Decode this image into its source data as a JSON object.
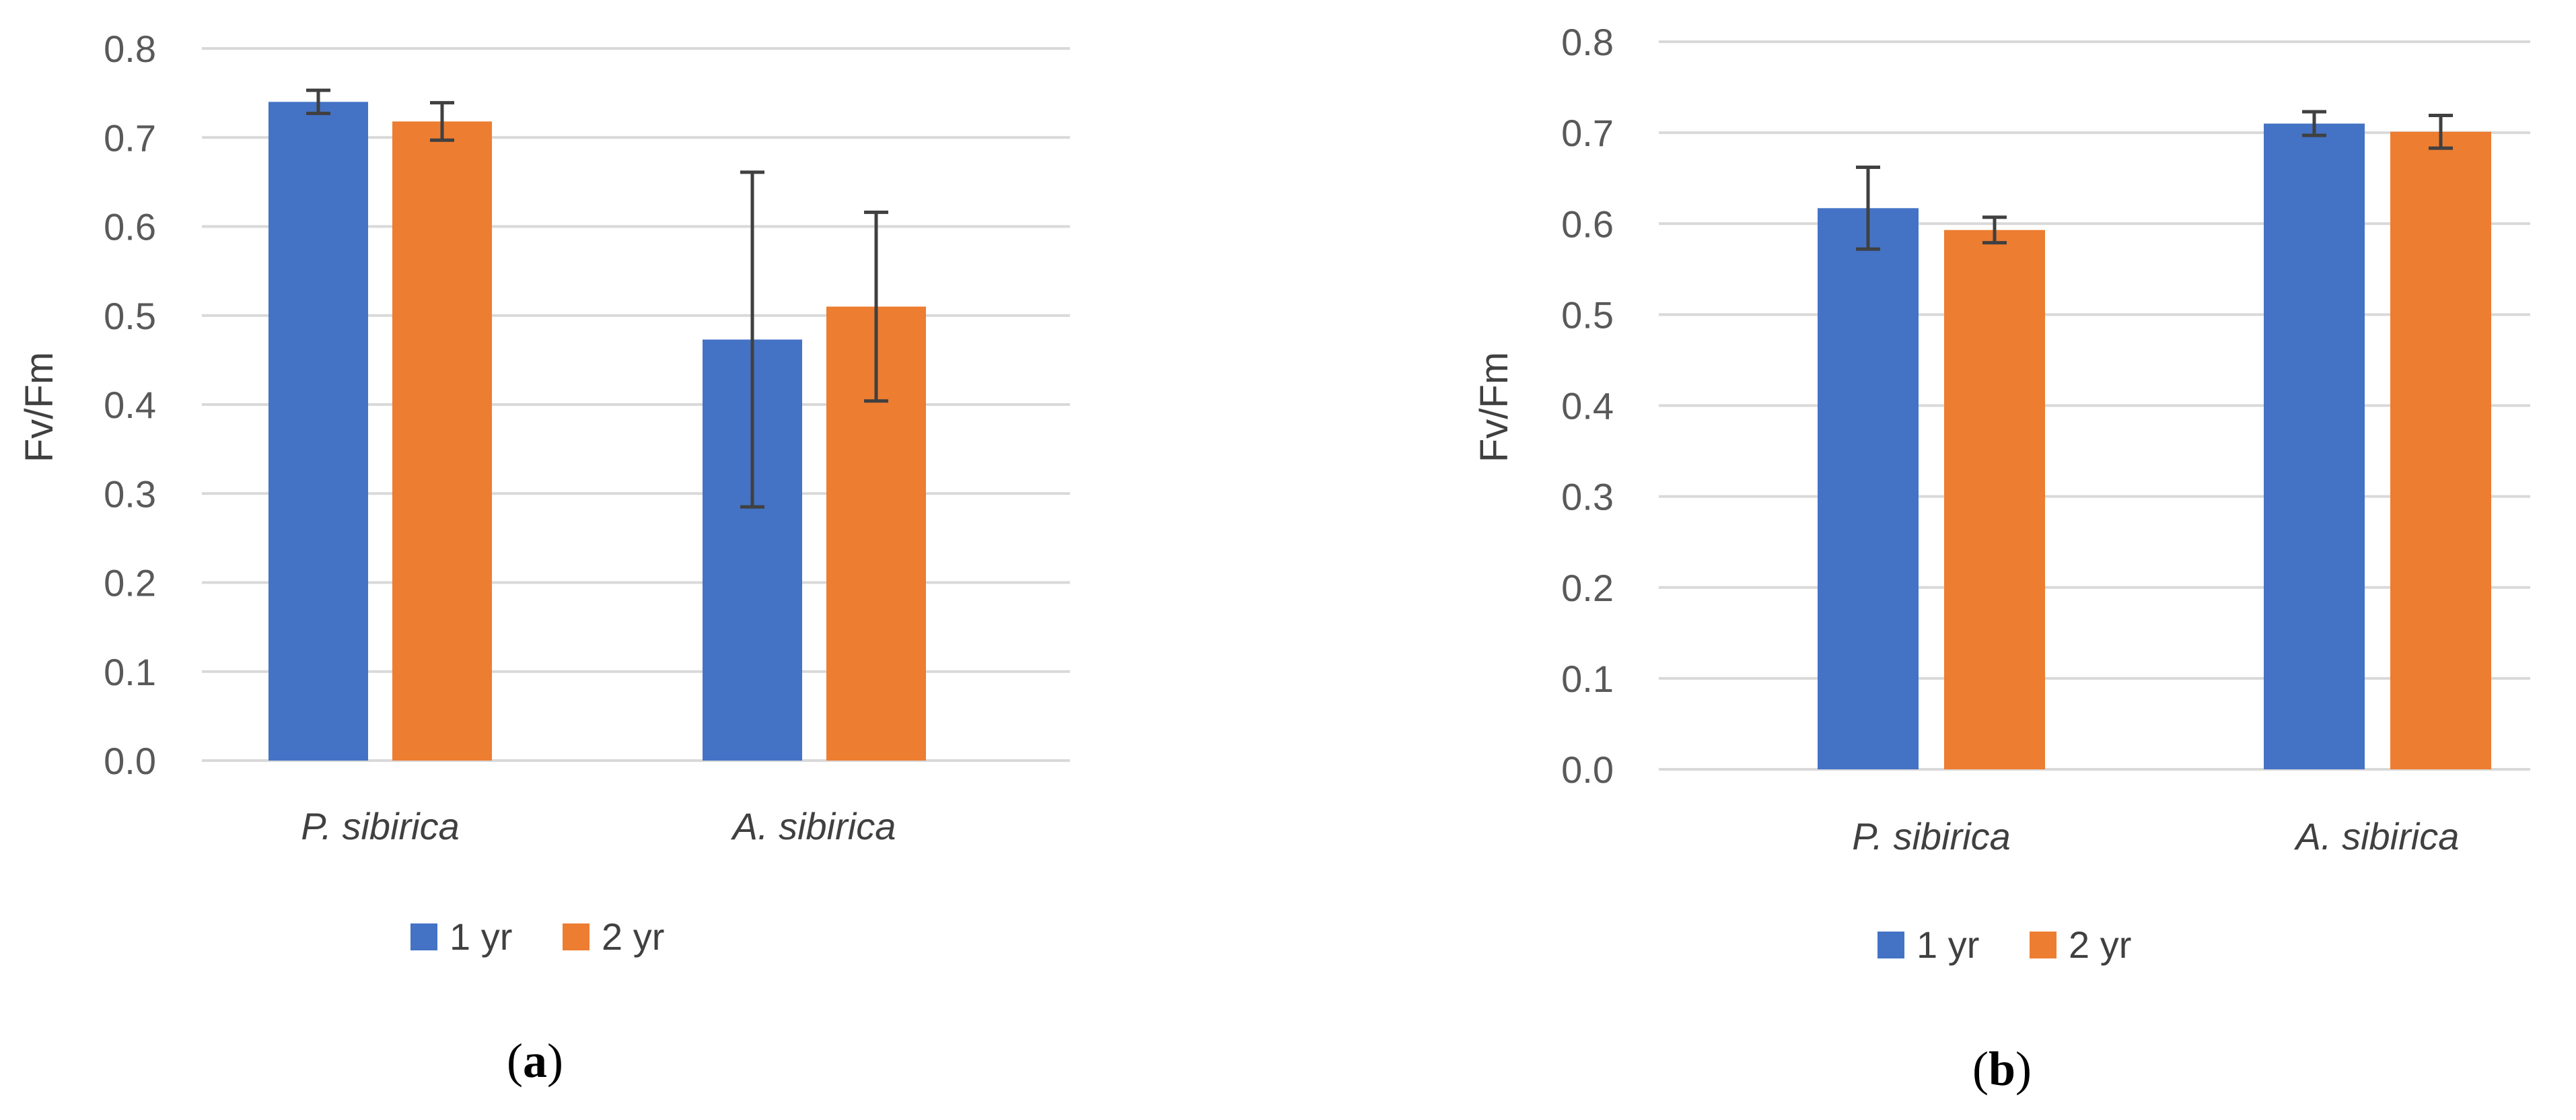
{
  "chart_data": [
    {
      "type": "bar",
      "panel_label": "a",
      "title": "",
      "xlabel": "",
      "ylabel": "Fv/Fm",
      "ylim": [
        0,
        0.8
      ],
      "yticks": [
        "0.0",
        "0.1",
        "0.2",
        "0.3",
        "0.4",
        "0.5",
        "0.6",
        "0.7",
        "0.8"
      ],
      "categories": [
        "P. sibirica",
        "A. sibirica"
      ],
      "series": [
        {
          "name": "1 yr",
          "color": "#4472c4",
          "values": [
            0.74,
            0.473
          ],
          "errors": [
            0.013,
            0.188
          ]
        },
        {
          "name": "2 yr",
          "color": "#ed7d31",
          "values": [
            0.718,
            0.51
          ],
          "errors": [
            0.021,
            0.106
          ]
        }
      ],
      "legend": [
        "1 yr",
        "2 yr"
      ]
    },
    {
      "type": "bar",
      "panel_label": "b",
      "title": "",
      "xlabel": "",
      "ylabel": "Fv/Fm",
      "ylim": [
        0,
        0.8
      ],
      "yticks": [
        "0.0",
        "0.1",
        "0.2",
        "0.3",
        "0.4",
        "0.5",
        "0.6",
        "0.7",
        "0.8"
      ],
      "categories": [
        "P. sibirica",
        "A. sibirica"
      ],
      "series": [
        {
          "name": "1 yr",
          "color": "#4472c4",
          "values": [
            0.617,
            0.71
          ],
          "errors": [
            0.045,
            0.013
          ]
        },
        {
          "name": "2 yr",
          "color": "#ed7d31",
          "values": [
            0.593,
            0.701
          ],
          "errors": [
            0.014,
            0.018
          ]
        }
      ],
      "legend": [
        "1 yr",
        "2 yr"
      ]
    }
  ]
}
